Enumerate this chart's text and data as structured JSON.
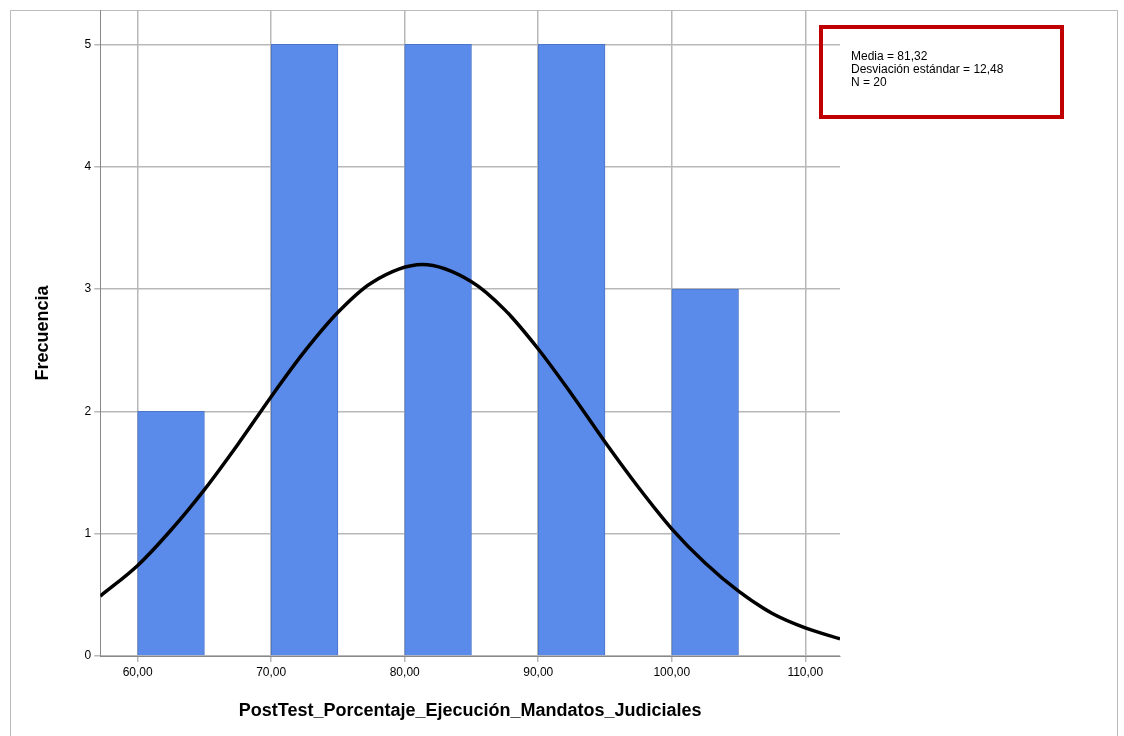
{
  "chart_data": {
    "type": "histogram",
    "xlabel": "PostTest_Porcentaje_Ejecución_Mandatos_Judiciales",
    "ylabel": "Frecuencia",
    "bins": [
      60,
      65,
      70,
      75,
      80,
      85,
      90,
      95,
      100,
      105
    ],
    "values": [
      2,
      0,
      5,
      0,
      5,
      0,
      5,
      0,
      3
    ],
    "color": "#5b8bea",
    "series": [
      {
        "type": "line",
        "color": "#000000",
        "x": [
          57.2,
          60,
          62.5,
          65,
          67.5,
          70,
          72.5,
          75,
          77.5,
          81.32,
          85,
          87.5,
          90,
          92.5,
          95,
          97.5,
          100,
          102.5,
          105,
          107.5,
          110,
          112.6
        ],
        "values": [
          0.49,
          0.74,
          1.03,
          1.36,
          1.73,
          2.12,
          2.49,
          2.81,
          3.05,
          3.2,
          3.06,
          2.83,
          2.51,
          2.14,
          1.75,
          1.38,
          1.04,
          0.76,
          0.53,
          0.35,
          0.23,
          0.14
        ]
      }
    ],
    "xlim": [
      57.2,
      112.6
    ],
    "ylim": [
      0,
      5.28
    ],
    "xticks": [
      {
        "value": 60,
        "label": "60,00"
      },
      {
        "value": 70,
        "label": "70,00"
      },
      {
        "value": 80,
        "label": "80,00"
      },
      {
        "value": 90,
        "label": "90,00"
      },
      {
        "value": 100,
        "label": "100,00"
      },
      {
        "value": 110,
        "label": "110,00"
      }
    ],
    "yticks": [
      0,
      1,
      2,
      3,
      4,
      5
    ],
    "grid": true,
    "legend": false,
    "marker": "none",
    "line_style": "solid",
    "annotations": [
      "Media = 81,32",
      "Desviación estándar = 12,48",
      "N = 20"
    ]
  }
}
